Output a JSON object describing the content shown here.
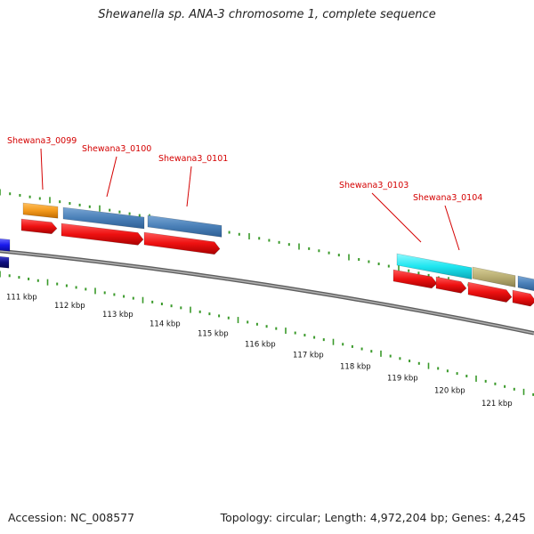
{
  "title": "Shewanella sp. ANA-3 chromosome 1, complete sequence",
  "footer": {
    "accession": "Accession: NC_008577",
    "topology": "Topology: circular; Length: 4,972,204 bp; Genes: 4,245"
  },
  "colors": {
    "gene_label": "#d40000",
    "cds_arrow": "#ee1111",
    "feature_blue": "#4a80b8",
    "feature_orange": "#f39a1c",
    "feature_cyan": "#1fe6f0",
    "feature_khaki": "#b8ad72",
    "feature_navy": "#101080",
    "ticks": "#3a9a2a",
    "backbone": "#8a8a8a"
  },
  "gene_labels": [
    "Shewana3_0099",
    "Shewana3_0100",
    "Shewana3_0101",
    "Shewana3_0103",
    "Shewana3_0104"
  ],
  "kbp_labels": [
    "111 kbp",
    "112 kbp",
    "113 kbp",
    "114 kbp",
    "115 kbp",
    "116 kbp",
    "117 kbp",
    "118 kbp",
    "119 kbp",
    "120 kbp",
    "121 kbp"
  ]
}
